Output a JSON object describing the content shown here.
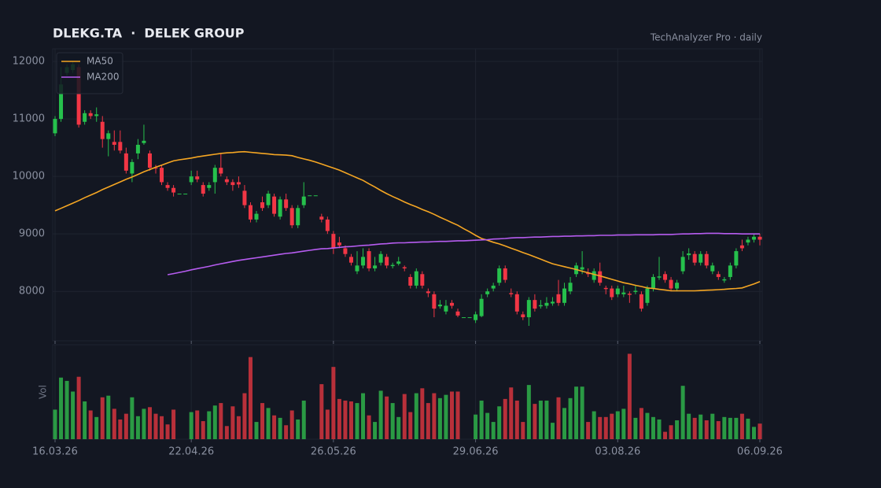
{
  "chart_data": {
    "type": "candlestick",
    "title": "DLEKG.TA  ·  DELEK GROUP",
    "subtitle": "TechAnalyzer Pro · daily",
    "categories": [
      "16.03.26",
      null,
      null,
      null,
      null,
      null,
      null,
      null,
      null,
      null,
      null,
      null,
      null,
      null,
      null,
      null,
      null,
      null,
      null,
      null,
      null,
      null,
      null,
      "22.04.26",
      null,
      null,
      null,
      null,
      null,
      null,
      null,
      null,
      null,
      null,
      null,
      null,
      null,
      null,
      null,
      null,
      null,
      null,
      null,
      null,
      null,
      null,
      null,
      "26.05.26",
      null,
      null,
      null,
      null,
      null,
      null,
      null,
      null,
      null,
      null,
      null,
      null,
      null,
      null,
      null,
      null,
      null,
      null,
      null,
      null,
      null,
      null,
      null,
      "29.06.26",
      null,
      null,
      null,
      null,
      null,
      null,
      null,
      null,
      null,
      null,
      null,
      null,
      null,
      null,
      null,
      null,
      null,
      null,
      null,
      null,
      null,
      null,
      null,
      "03.08.26",
      null,
      null,
      null,
      null,
      null,
      null,
      null,
      null,
      null,
      null,
      null,
      null,
      null,
      null,
      null,
      null,
      null,
      null,
      null,
      null,
      null,
      null,
      null,
      "06.09.26"
    ],
    "open": [
      10750,
      11000,
      11800,
      11850,
      11900,
      10950,
      11100,
      11050,
      10950,
      10650,
      10600,
      10600,
      10400,
      10050,
      10400,
      10580,
      10400,
      10150,
      10150,
      9850,
      9800,
      9700,
      9700,
      9900,
      10000,
      9850,
      9800,
      9900,
      10150,
      9950,
      9900,
      9900,
      9750,
      9500,
      9250,
      9550,
      9500,
      9650,
      9300,
      9600,
      9450,
      9150,
      9500,
      9670,
      9670,
      9300,
      9250,
      9000,
      8850,
      8750,
      8600,
      8350,
      8450,
      8700,
      8400,
      8500,
      8600,
      8440,
      8480,
      8420,
      8250,
      8100,
      8300,
      8000,
      7950,
      7740,
      7650,
      7800,
      7650,
      7550,
      7550,
      7500,
      7570,
      7950,
      8050,
      8150,
      8400,
      7970,
      7950,
      7600,
      7550,
      7850,
      7740,
      7750,
      7790,
      7950,
      7800,
      8000,
      8300,
      8380,
      8320,
      8200,
      8350,
      8060,
      8050,
      7950,
      7950,
      7960,
      7990,
      7950,
      7800,
      8050,
      8240,
      8300,
      8200,
      8050,
      8350,
      8630,
      8650,
      8500,
      8650,
      8350,
      8300,
      8190,
      8250,
      8450,
      8800,
      8850,
      8900,
      8950
    ],
    "high": [
      11050,
      11900,
      11950,
      12000,
      11950,
      11150,
      11150,
      11200,
      11050,
      10800,
      10800,
      10800,
      10500,
      10300,
      10650,
      10900,
      10450,
      10200,
      10200,
      9900,
      9850,
      9700,
      9700,
      10100,
      10100,
      9900,
      9900,
      10200,
      10400,
      10000,
      9950,
      10000,
      9850,
      9550,
      9400,
      9650,
      9750,
      9700,
      9650,
      9700,
      9500,
      9500,
      9900,
      9670,
      9670,
      9350,
      9300,
      9050,
      8950,
      8800,
      8650,
      8700,
      8750,
      8750,
      8600,
      8700,
      8650,
      8500,
      8600,
      8450,
      8300,
      8400,
      8350,
      8050,
      8000,
      7850,
      7850,
      7850,
      7700,
      7550,
      7550,
      7650,
      7950,
      8050,
      8150,
      8450,
      8450,
      8050,
      8000,
      7650,
      7900,
      7950,
      7850,
      7900,
      7900,
      8200,
      8150,
      8250,
      8500,
      8700,
      8400,
      8400,
      8500,
      8100,
      8100,
      8100,
      8100,
      8000,
      8100,
      8000,
      8100,
      8300,
      8600,
      8350,
      8250,
      8200,
      8700,
      8750,
      8700,
      8700,
      8700,
      8500,
      8350,
      8250,
      8500,
      8750,
      8900,
      8950,
      9000,
      9000
    ],
    "low": [
      10700,
      10950,
      11750,
      11800,
      10850,
      10900,
      11000,
      10950,
      10500,
      10350,
      10450,
      10400,
      10050,
      9900,
      10300,
      10550,
      10100,
      10050,
      9850,
      9750,
      9650,
      9700,
      9700,
      9850,
      9900,
      9650,
      9750,
      9700,
      10000,
      9850,
      9750,
      9800,
      9450,
      9200,
      9200,
      9400,
      9450,
      9300,
      9250,
      9400,
      9100,
      9100,
      9450,
      9670,
      9670,
      9200,
      9000,
      8650,
      8750,
      8600,
      8450,
      8300,
      8400,
      8350,
      8350,
      8450,
      8400,
      8400,
      8450,
      8350,
      8050,
      8050,
      8050,
      7900,
      7550,
      7700,
      7600,
      7700,
      7550,
      7550,
      7550,
      7450,
      7550,
      7900,
      8000,
      8100,
      8150,
      7900,
      7600,
      7500,
      7400,
      7650,
      7700,
      7700,
      7750,
      7750,
      7750,
      7950,
      8250,
      8300,
      8250,
      8150,
      8100,
      7950,
      7850,
      7900,
      7900,
      7800,
      7950,
      7650,
      7750,
      8000,
      8200,
      8150,
      8000,
      8000,
      8300,
      8550,
      8450,
      8450,
      8400,
      8300,
      8200,
      8150,
      8200,
      8400,
      8700,
      8800,
      8850,
      8800
    ],
    "close": [
      11000,
      11600,
      11900,
      11950,
      10900,
      11100,
      11050,
      11080,
      10650,
      10750,
      10550,
      10450,
      10100,
      10250,
      10550,
      10620,
      10150,
      10140,
      9900,
      9800,
      9720,
      9700,
      9700,
      10000,
      9950,
      9700,
      9850,
      10150,
      10050,
      9900,
      9850,
      9860,
      9500,
      9250,
      9350,
      9450,
      9700,
      9350,
      9600,
      9450,
      9150,
      9450,
      9650,
      9670,
      9670,
      9250,
      9050,
      8750,
      8800,
      8650,
      8500,
      8450,
      8600,
      8400,
      8450,
      8650,
      8450,
      8460,
      8520,
      8400,
      8100,
      8350,
      8100,
      7970,
      7700,
      7770,
      7750,
      7750,
      7580,
      7550,
      7550,
      7600,
      7870,
      8000,
      8100,
      8400,
      8200,
      7950,
      7650,
      7550,
      7850,
      7700,
      7760,
      7800,
      7820,
      7800,
      8050,
      8150,
      8450,
      8420,
      8300,
      8350,
      8150,
      8040,
      7900,
      8050,
      7980,
      7940,
      8010,
      7700,
      8050,
      8250,
      8260,
      8200,
      8050,
      8150,
      8600,
      8660,
      8500,
      8650,
      8450,
      8450,
      8250,
      8210,
      8450,
      8700,
      8750,
      8900,
      8950,
      8900
    ],
    "up_color": "#26c04c",
    "down_color": "#f23645",
    "ylim": [
      7140,
      12220
    ],
    "yticks": [
      8000,
      9000,
      10000,
      11000,
      12000
    ],
    "grid": true,
    "legend": "upper left",
    "series": [
      {
        "name": "MA50",
        "color": "#f5a623",
        "values": [
          9400,
          9445,
          9490,
          9535,
          9580,
          9630,
          9675,
          9720,
          9770,
          9815,
          9860,
          9905,
          9950,
          9990,
          10035,
          10080,
          10120,
          10160,
          10195,
          10235,
          10270,
          10290,
          10305,
          10320,
          10340,
          10355,
          10370,
          10385,
          10400,
          10410,
          10415,
          10425,
          10430,
          10420,
          10410,
          10400,
          10390,
          10380,
          10375,
          10370,
          10360,
          10330,
          10305,
          10280,
          10250,
          10215,
          10180,
          10145,
          10110,
          10065,
          10020,
          9975,
          9930,
          9870,
          9815,
          9755,
          9700,
          9650,
          9605,
          9555,
          9510,
          9470,
          9425,
          9385,
          9340,
          9290,
          9245,
          9195,
          9150,
          9090,
          9035,
          8975,
          8920,
          8890,
          8855,
          8825,
          8790,
          8750,
          8715,
          8675,
          8640,
          8600,
          8560,
          8520,
          8480,
          8455,
          8430,
          8405,
          8380,
          8350,
          8325,
          8295,
          8270,
          8240,
          8210,
          8180,
          8150,
          8130,
          8105,
          8085,
          8060,
          8050,
          8035,
          8025,
          8010,
          8010,
          8010,
          8010,
          8010,
          8015,
          8020,
          8025,
          8030,
          8035,
          8045,
          8050,
          8060,
          8095,
          8130,
          8170
        ]
      },
      {
        "name": "MA200",
        "color": "#b65cf0",
        "values": [
          null,
          null,
          null,
          null,
          null,
          null,
          null,
          null,
          null,
          null,
          null,
          null,
          null,
          null,
          null,
          null,
          null,
          null,
          null,
          8290,
          8310,
          8330,
          8350,
          8375,
          8395,
          8415,
          8435,
          8460,
          8480,
          8500,
          8520,
          8540,
          8555,
          8570,
          8585,
          8600,
          8615,
          8630,
          8645,
          8660,
          8670,
          8685,
          8700,
          8715,
          8730,
          8740,
          8745,
          8755,
          8765,
          8775,
          8780,
          8790,
          8800,
          8805,
          8815,
          8825,
          8830,
          8840,
          8845,
          8845,
          8850,
          8855,
          8860,
          8860,
          8865,
          8870,
          8870,
          8875,
          8880,
          8880,
          8885,
          8890,
          8895,
          8900,
          8910,
          8915,
          8920,
          8930,
          8935,
          8935,
          8940,
          8945,
          8945,
          8950,
          8955,
          8955,
          8960,
          8960,
          8965,
          8965,
          8970,
          8970,
          8975,
          8975,
          8975,
          8980,
          8980,
          8980,
          8985,
          8985,
          8985,
          8985,
          8990,
          8990,
          8990,
          8995,
          9000,
          9000,
          9005,
          9005,
          9010,
          9010,
          9010,
          9005,
          9005,
          9005,
          9000,
          9000,
          9000,
          9000
        ]
      }
    ],
    "volume": {
      "label": "Vol",
      "ylim": [
        0,
        115
      ],
      "up_color": "#2a9a44",
      "down_color": "#b8303a",
      "values": [
        36,
        75,
        71,
        58,
        76,
        46,
        35,
        27,
        51,
        53,
        37,
        24,
        31,
        51,
        28,
        37,
        39,
        31,
        28,
        18,
        36,
        0,
        0,
        33,
        35,
        22,
        34,
        41,
        44,
        16,
        40,
        28,
        56,
        100,
        21,
        44,
        38,
        29,
        26,
        17,
        35,
        24,
        47,
        0,
        0,
        67,
        36,
        88,
        49,
        47,
        46,
        44,
        56,
        29,
        21,
        59,
        52,
        44,
        27,
        55,
        33,
        56,
        62,
        44,
        56,
        50,
        54,
        58,
        58,
        0,
        0,
        30,
        47,
        32,
        21,
        40,
        49,
        63,
        47,
        21,
        66,
        43,
        47,
        47,
        20,
        51,
        38,
        50,
        64,
        64,
        21,
        34,
        27,
        27,
        31,
        34,
        37,
        104,
        26,
        38,
        32,
        27,
        24,
        9,
        17,
        23,
        65,
        31,
        26,
        30,
        23,
        31,
        22,
        27,
        26,
        26,
        31,
        25,
        15,
        19
      ]
    }
  }
}
